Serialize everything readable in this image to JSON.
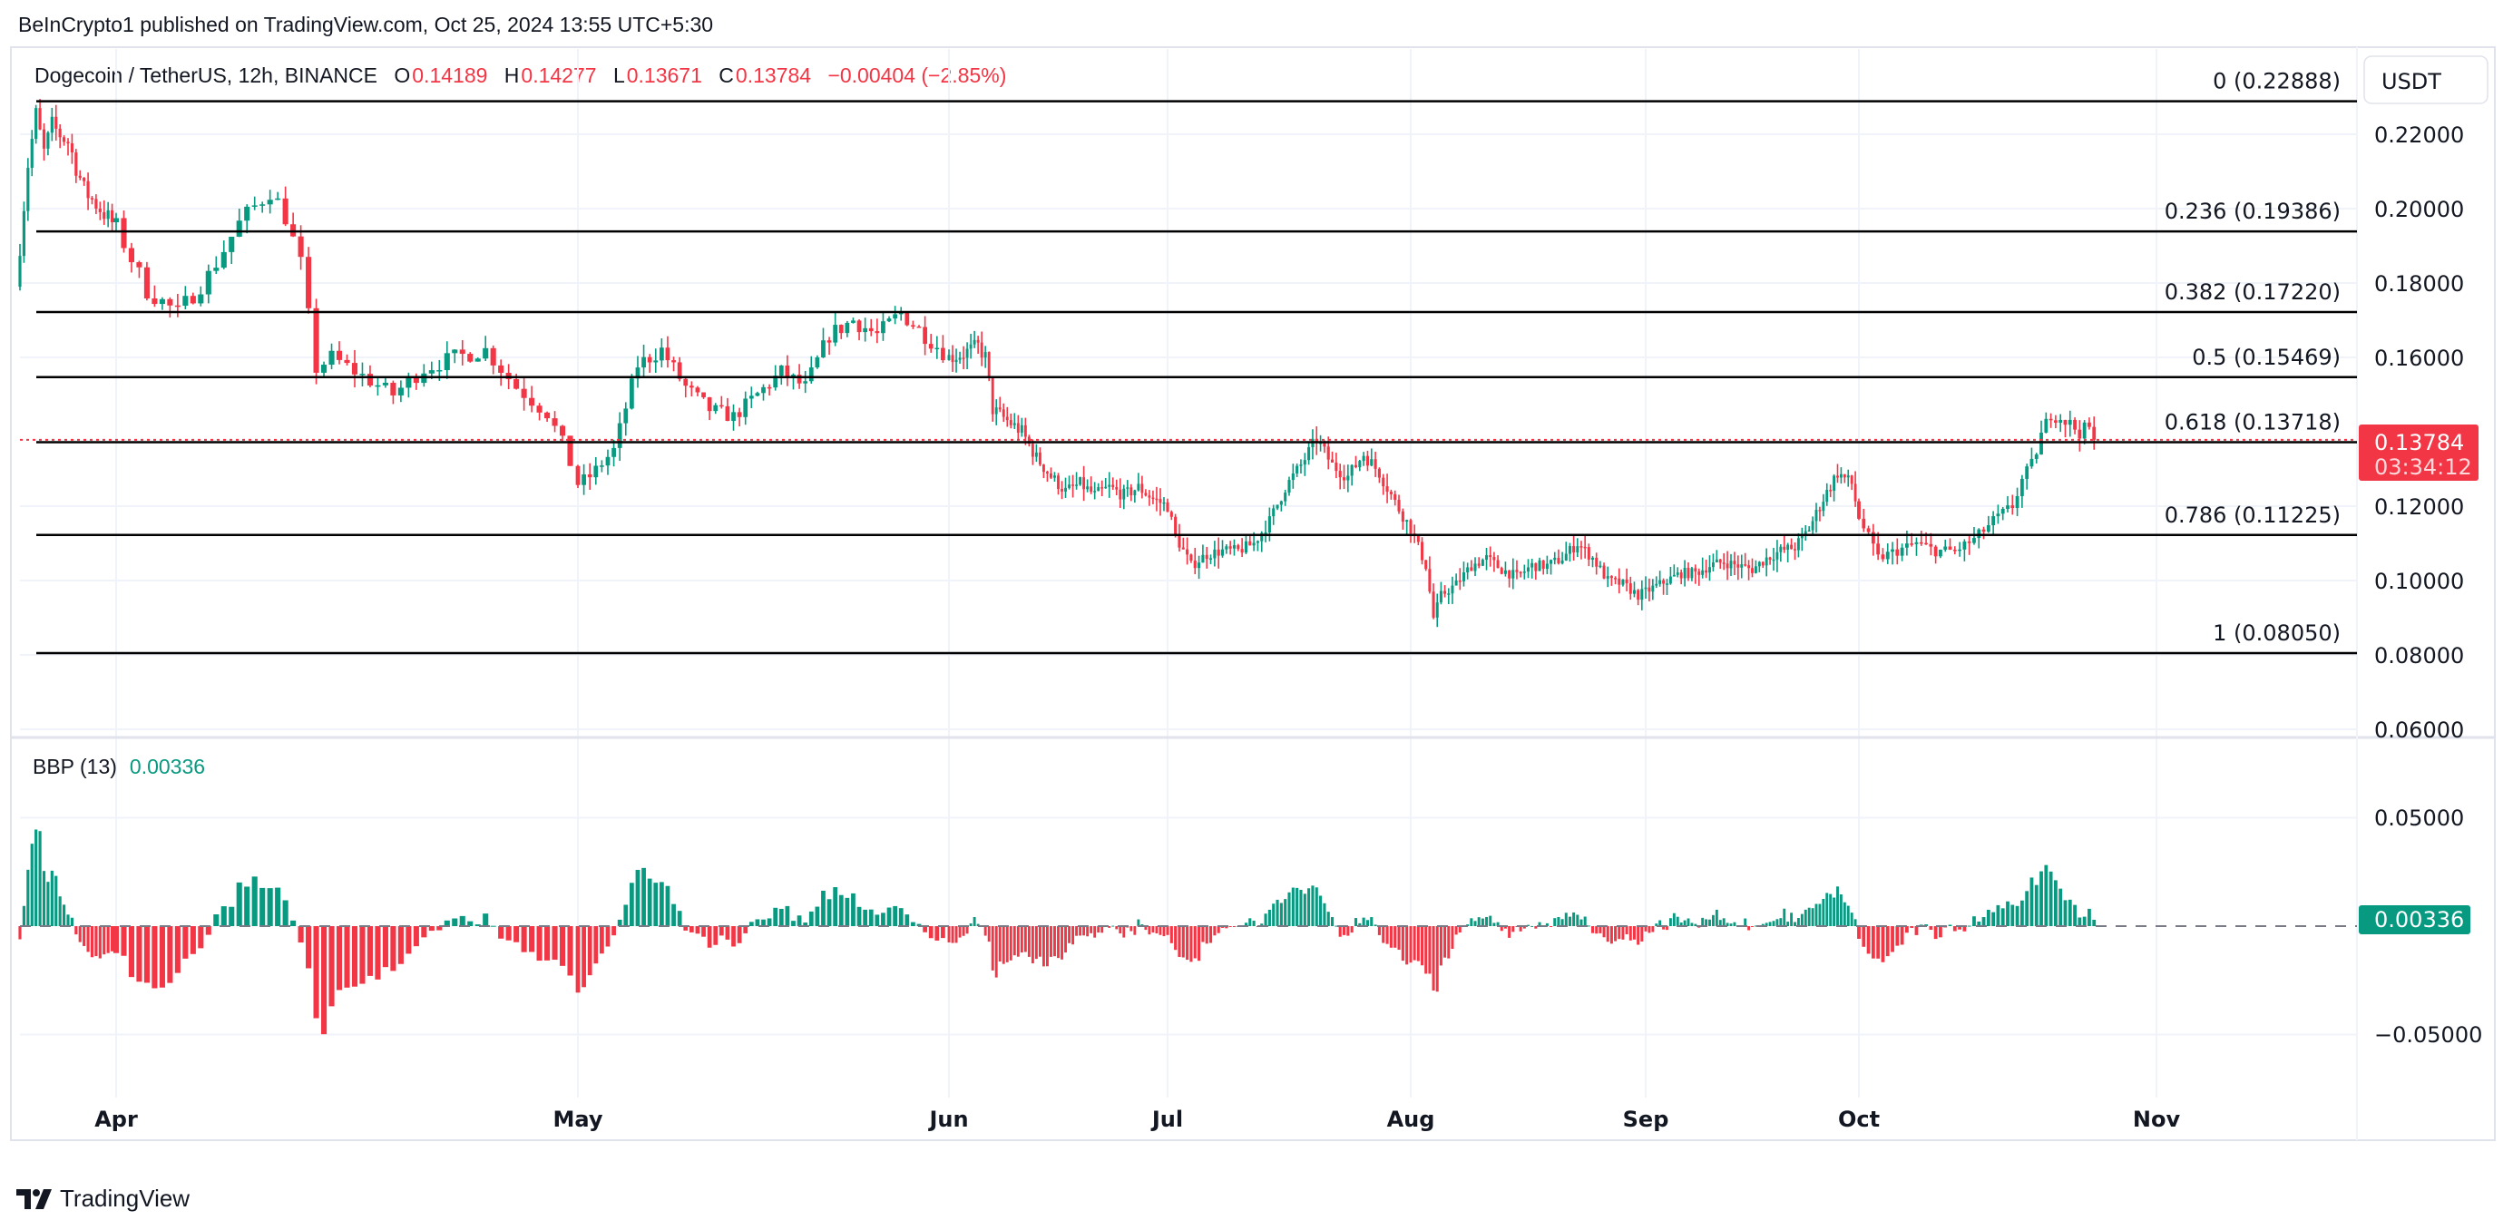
{
  "header": {
    "published": "BeInCrypto1 published on TradingView.com, Oct 25, 2024 13:55 UTC+5:30"
  },
  "legend": {
    "symbol": "Dogecoin / TetherUS, 12h, BINANCE",
    "o_label": "O",
    "o": "0.14189",
    "h_label": "H",
    "h": "0.14277",
    "l_label": "L",
    "l": "0.13671",
    "c_label": "C",
    "c": "0.13784",
    "change": "−0.00404 (−2.85%)"
  },
  "price_axis": {
    "currency": "USDT",
    "ticks": [
      "0.22000",
      "0.20000",
      "0.18000",
      "0.16000",
      "0.12000",
      "0.10000",
      "0.08000",
      "0.06000"
    ],
    "last_price": "0.13784",
    "countdown": "03:34:12"
  },
  "fib_levels": [
    {
      "label": "0 (0.22888)",
      "value": 0.22888
    },
    {
      "label": "0.236 (0.19386)",
      "value": 0.19386
    },
    {
      "label": "0.382 (0.17220)",
      "value": 0.1722
    },
    {
      "label": "0.5 (0.15469)",
      "value": 0.15469
    },
    {
      "label": "0.618 (0.13718)",
      "value": 0.13718
    },
    {
      "label": "0.786 (0.11225)",
      "value": 0.11225
    },
    {
      "label": "1 (0.08050)",
      "value": 0.0805
    }
  ],
  "bbp": {
    "title": "BBP (13)",
    "value": "0.00336",
    "ticks": [
      "0.05000",
      "−0.05000"
    ]
  },
  "time_axis": {
    "months": [
      "Apr",
      "May",
      "Jun",
      "Jul",
      "Aug",
      "Sep",
      "Oct",
      "Nov"
    ]
  },
  "footer": {
    "brand": "TradingView"
  },
  "colors": {
    "up": "#089981",
    "down": "#f23645",
    "fib": "#000000",
    "grid": "#f0f3fa"
  },
  "chart_data": {
    "type": "candlestick",
    "title": "Dogecoin / TetherUS, 12h, BINANCE",
    "x_unit": "days since Apr 1 2024",
    "ylim": [
      0.055,
      0.232
    ],
    "bbp_ylim": [
      -0.068,
      0.06
    ],
    "close_keypoints": [
      [
        -12,
        0.19
      ],
      [
        -11,
        0.212
      ],
      [
        -10,
        0.225
      ],
      [
        -9,
        0.215
      ],
      [
        -8,
        0.222
      ],
      [
        -6,
        0.218
      ],
      [
        -4,
        0.205
      ],
      [
        -2,
        0.2
      ],
      [
        0,
        0.195
      ],
      [
        2,
        0.178
      ],
      [
        4,
        0.172
      ],
      [
        6,
        0.182
      ],
      [
        8,
        0.196
      ],
      [
        10,
        0.205
      ],
      [
        11,
        0.198
      ],
      [
        12,
        0.185
      ],
      [
        13,
        0.157
      ],
      [
        14,
        0.16
      ],
      [
        16,
        0.155
      ],
      [
        18,
        0.15
      ],
      [
        20,
        0.157
      ],
      [
        22,
        0.16
      ],
      [
        24,
        0.162
      ],
      [
        26,
        0.152
      ],
      [
        28,
        0.145
      ],
      [
        29,
        0.137
      ],
      [
        30,
        0.126
      ],
      [
        31,
        0.128
      ],
      [
        33,
        0.135
      ],
      [
        35,
        0.158
      ],
      [
        37,
        0.162
      ],
      [
        39,
        0.152
      ],
      [
        41,
        0.146
      ],
      [
        43,
        0.144
      ],
      [
        45,
        0.15
      ],
      [
        47,
        0.156
      ],
      [
        49,
        0.152
      ],
      [
        51,
        0.166
      ],
      [
        53,
        0.17
      ],
      [
        55,
        0.166
      ],
      [
        57,
        0.172
      ],
      [
        59,
        0.166
      ],
      [
        61,
        0.16
      ],
      [
        63,
        0.161
      ],
      [
        65,
        0.163
      ],
      [
        66,
        0.16
      ],
      [
        67,
        0.146
      ],
      [
        69,
        0.143
      ],
      [
        71,
        0.14
      ],
      [
        73,
        0.133
      ],
      [
        75,
        0.128
      ],
      [
        77,
        0.124
      ],
      [
        79,
        0.126
      ],
      [
        81,
        0.123
      ],
      [
        83,
        0.125
      ],
      [
        85,
        0.123
      ],
      [
        87,
        0.125
      ],
      [
        89,
        0.122
      ],
      [
        91,
        0.12
      ],
      [
        92,
        0.112
      ],
      [
        94,
        0.104
      ],
      [
        96,
        0.107
      ],
      [
        98,
        0.108
      ],
      [
        100,
        0.108
      ],
      [
        102,
        0.11
      ],
      [
        104,
        0.116
      ],
      [
        106,
        0.125
      ],
      [
        108,
        0.131
      ],
      [
        110,
        0.138
      ],
      [
        112,
        0.131
      ],
      [
        114,
        0.128
      ],
      [
        116,
        0.134
      ],
      [
        118,
        0.129
      ],
      [
        120,
        0.121
      ],
      [
        122,
        0.114
      ],
      [
        124,
        0.104
      ],
      [
        125,
        0.09
      ],
      [
        126,
        0.096
      ],
      [
        128,
        0.099
      ],
      [
        130,
        0.104
      ],
      [
        132,
        0.106
      ],
      [
        134,
        0.103
      ],
      [
        136,
        0.101
      ],
      [
        138,
        0.104
      ],
      [
        140,
        0.104
      ],
      [
        142,
        0.106
      ],
      [
        144,
        0.11
      ],
      [
        146,
        0.106
      ],
      [
        148,
        0.1
      ],
      [
        150,
        0.099
      ],
      [
        152,
        0.096
      ],
      [
        154,
        0.098
      ],
      [
        156,
        0.1
      ],
      [
        158,
        0.102
      ],
      [
        160,
        0.102
      ],
      [
        162,
        0.104
      ],
      [
        164,
        0.105
      ],
      [
        166,
        0.104
      ],
      [
        168,
        0.103
      ],
      [
        170,
        0.106
      ],
      [
        172,
        0.108
      ],
      [
        174,
        0.109
      ],
      [
        176,
        0.114
      ],
      [
        178,
        0.122
      ],
      [
        180,
        0.129
      ],
      [
        182,
        0.126
      ],
      [
        183,
        0.117
      ],
      [
        185,
        0.106
      ],
      [
        187,
        0.108
      ],
      [
        189,
        0.11
      ],
      [
        191,
        0.108
      ],
      [
        193,
        0.108
      ],
      [
        195,
        0.111
      ],
      [
        197,
        0.116
      ],
      [
        199,
        0.12
      ],
      [
        200,
        0.127
      ],
      [
        201,
        0.131
      ],
      [
        202,
        0.139
      ],
      [
        203,
        0.145
      ],
      [
        204,
        0.144
      ],
      [
        205,
        0.142
      ],
      [
        206,
        0.14
      ],
      [
        207,
        0.141
      ],
      [
        207.5,
        0.13784
      ]
    ]
  }
}
